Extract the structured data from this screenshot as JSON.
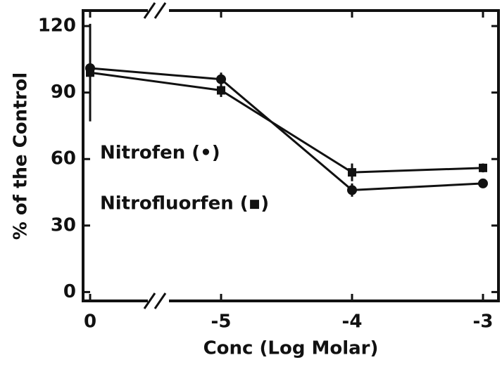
{
  "chart_data": {
    "type": "line",
    "xlabel": "Conc (Log Molar)",
    "ylabel": "% of the Control",
    "categories": [
      "0",
      "-5",
      "-4",
      "-3"
    ],
    "series": [
      {
        "name": "Nitrofen (•)",
        "marker": "circle",
        "color": "#111111",
        "values": [
          101,
          96,
          46,
          49
        ],
        "errors": [
          5,
          3,
          3,
          2
        ]
      },
      {
        "name": "Nitrofluorfen (▪)",
        "marker": "square",
        "color": "#111111",
        "values": [
          99,
          91,
          54,
          56
        ],
        "errors": [
          22,
          3,
          4,
          2
        ]
      }
    ],
    "ylim": [
      -4,
      127
    ],
    "yticks": [
      0,
      30,
      60,
      90,
      120
    ]
  }
}
